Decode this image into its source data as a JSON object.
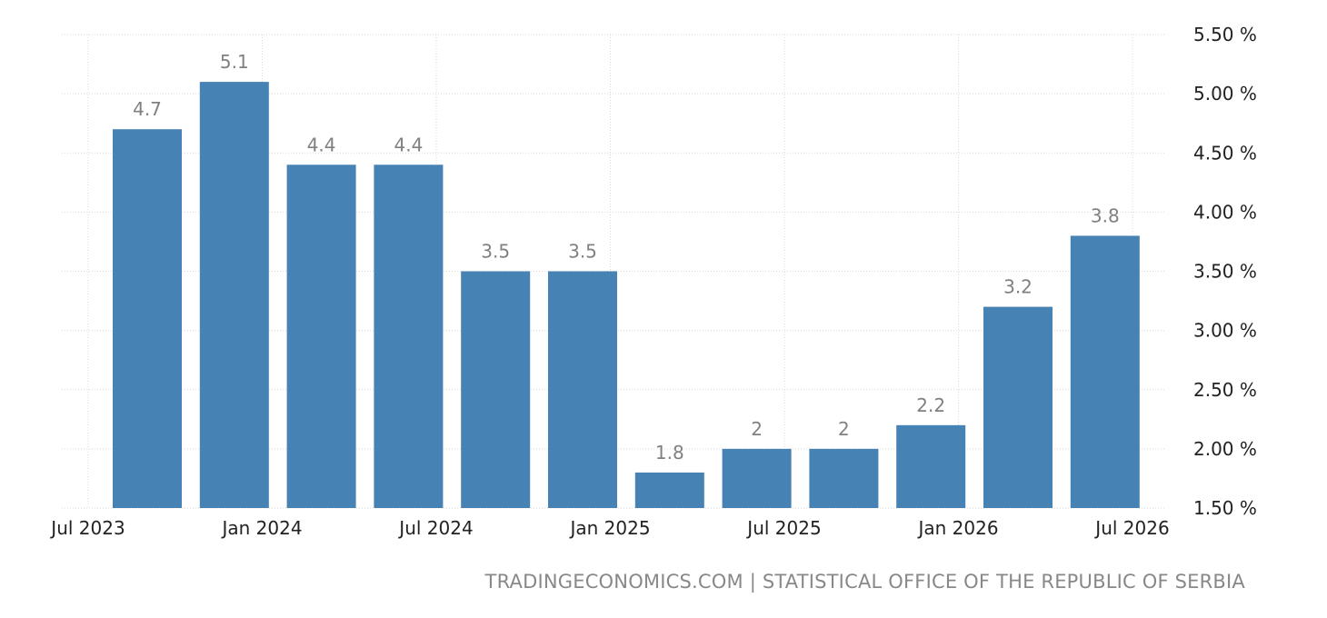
{
  "chart_data": {
    "type": "bar",
    "categories": [
      "Sep 2023",
      "Dec 2023",
      "Mar 2024",
      "Jun 2024",
      "Sep 2024",
      "Dec 2024",
      "Mar 2025",
      "Jun 2025",
      "Sep 2025",
      "Dec 2025",
      "Mar 2026",
      "Jun 2026"
    ],
    "values": [
      4.7,
      5.1,
      4.4,
      4.4,
      3.5,
      3.5,
      1.8,
      2,
      2,
      2.2,
      3.2,
      3.8
    ],
    "value_labels": [
      "4.7",
      "5.1",
      "4.4",
      "4.4",
      "3.5",
      "3.5",
      "1.8",
      "2",
      "2",
      "2.2",
      "3.2",
      "3.8"
    ],
    "x_ticks": [
      "Jul 2023",
      "Jan 2024",
      "Jul 2024",
      "Jan 2025",
      "Jul 2025",
      "Jan 2026",
      "Jul 2026"
    ],
    "y_ticks": [
      "5.50 %",
      "5.00 %",
      "4.50 %",
      "4.00 %",
      "3.50 %",
      "3.00 %",
      "2.50 %",
      "2.00 %",
      "1.50 %"
    ],
    "ylim": [
      1.5,
      5.5
    ],
    "y_axis_position": "right",
    "grid": true,
    "bar_color": "#4682b4",
    "title": "",
    "xlabel": "",
    "ylabel": ""
  },
  "source_text": "TRADINGECONOMICS.COM | STATISTICAL OFFICE OF THE REPUBLIC OF SERBIA"
}
